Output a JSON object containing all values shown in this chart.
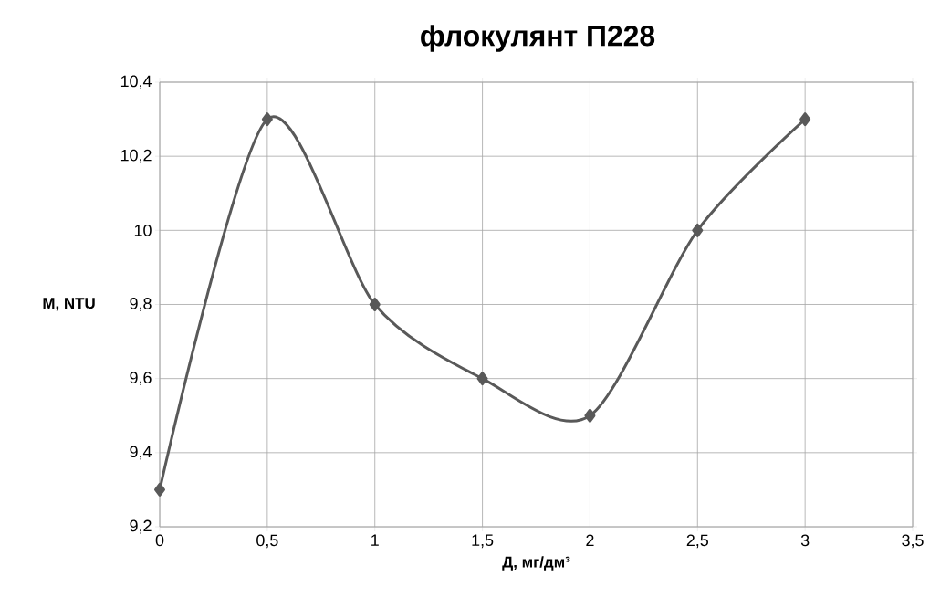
{
  "chart_data": {
    "type": "line",
    "title": "флокулянт П228",
    "xlabel": "Д, мг/дм³",
    "ylabel": "М, NTU",
    "x": [
      0,
      0.5,
      1,
      1.5,
      2,
      2.5,
      3
    ],
    "values": [
      9.3,
      10.3,
      9.8,
      9.6,
      9.5,
      10.0,
      10.3
    ],
    "color": "#595959",
    "marker": "diamond",
    "line_style": "solid",
    "grid": true,
    "xlim": [
      0,
      3.5
    ],
    "xticks": [
      0,
      {
        "value": 0.5,
        "label": "0,5"
      },
      1,
      {
        "value": 1.5,
        "label": "1,5"
      },
      2,
      {
        "value": 2.5,
        "label": "2,5"
      },
      3,
      {
        "value": 3.5,
        "label": "3,5"
      }
    ],
    "ylim": [
      9.2,
      10.4
    ],
    "yticks": [
      {
        "value": 9.2,
        "label": "9,2"
      },
      {
        "value": 9.4,
        "label": "9,4"
      },
      {
        "value": 9.6,
        "label": "9,6"
      },
      {
        "value": 9.8,
        "label": "9,8"
      },
      10,
      {
        "value": 10.2,
        "label": "10,2"
      },
      {
        "value": 10.4,
        "label": "10,4"
      }
    ]
  }
}
